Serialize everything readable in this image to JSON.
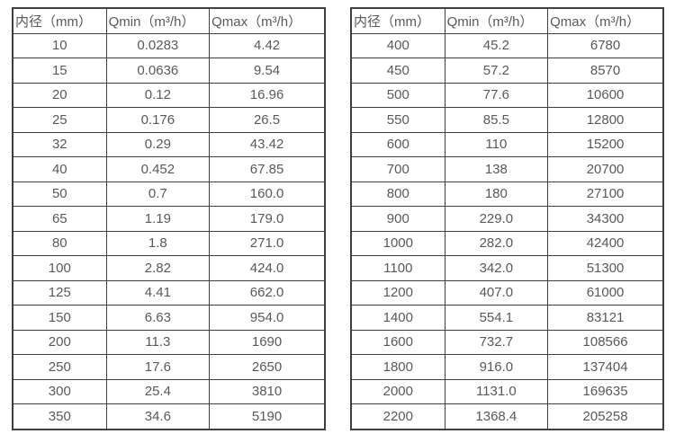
{
  "tables": [
    {
      "name": "flow-table-small-diameters",
      "headers": [
        "内径（mm）",
        "Qmin（m³/h）",
        "Qmax（m³/h）"
      ],
      "rows": [
        [
          "10",
          "0.0283",
          "4.42"
        ],
        [
          "15",
          "0.0636",
          "9.54"
        ],
        [
          "20",
          "0.12",
          "16.96"
        ],
        [
          "25",
          "0.176",
          "26.5"
        ],
        [
          "32",
          "0.29",
          "43.42"
        ],
        [
          "40",
          "0.452",
          "67.85"
        ],
        [
          "50",
          "0.7",
          "160.0"
        ],
        [
          "65",
          "1.19",
          "179.0"
        ],
        [
          "80",
          "1.8",
          "271.0"
        ],
        [
          "100",
          "2.82",
          "424.0"
        ],
        [
          "125",
          "4.41",
          "662.0"
        ],
        [
          "150",
          "6.63",
          "954.0"
        ],
        [
          "200",
          "11.3",
          "1690"
        ],
        [
          "250",
          "17.6",
          "2650"
        ],
        [
          "300",
          "25.4",
          "3810"
        ],
        [
          "350",
          "34.6",
          "5190"
        ]
      ]
    },
    {
      "name": "flow-table-large-diameters",
      "headers": [
        "内径（mm）",
        "Qmin（m³/h）",
        "Qmax（m³/h）"
      ],
      "rows": [
        [
          "400",
          "45.2",
          "6780"
        ],
        [
          "450",
          "57.2",
          "8570"
        ],
        [
          "500",
          "77.6",
          "10600"
        ],
        [
          "550",
          "85.5",
          "12800"
        ],
        [
          "600",
          "110",
          "15200"
        ],
        [
          "700",
          "138",
          "20700"
        ],
        [
          "800",
          "180",
          "27100"
        ],
        [
          "900",
          "229.0",
          "34300"
        ],
        [
          "1000",
          "282.0",
          "42400"
        ],
        [
          "1100",
          "342.0",
          "51300"
        ],
        [
          "1200",
          "407.0",
          "61000"
        ],
        [
          "1400",
          "554.1",
          "83121"
        ],
        [
          "1600",
          "732.7",
          "108566"
        ],
        [
          "1800",
          "916.0",
          "137404"
        ],
        [
          "2000",
          "1131.0",
          "169635"
        ],
        [
          "2200",
          "1368.4",
          "205258"
        ]
      ]
    }
  ],
  "colors": {
    "border": "#3f3f3f",
    "text": "#595959",
    "background": "#ffffff"
  }
}
